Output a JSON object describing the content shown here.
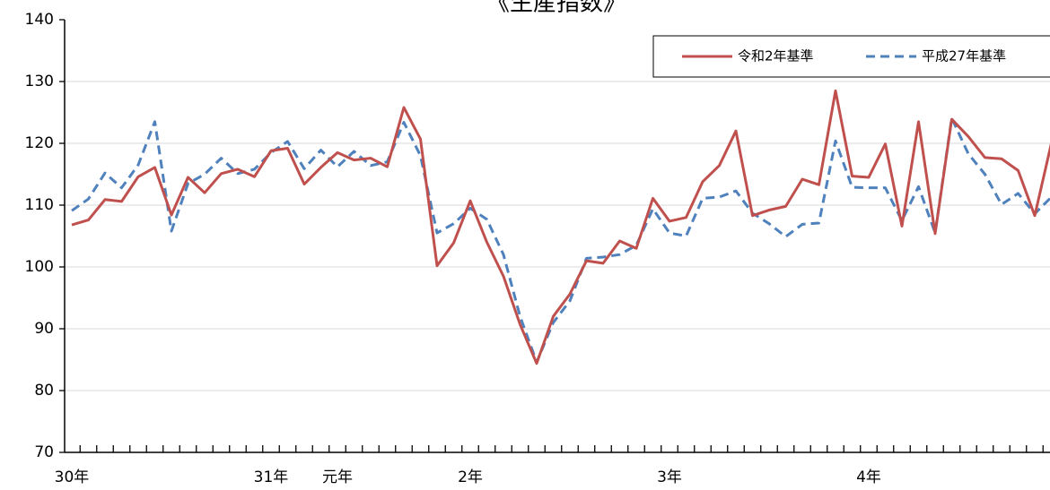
{
  "chart_data": {
    "type": "line",
    "title": "《生産指数》",
    "categories": [
      "30年",
      null,
      null,
      null,
      null,
      null,
      null,
      null,
      null,
      null,
      null,
      null,
      "31年",
      null,
      null,
      null,
      "元年",
      null,
      null,
      null,
      null,
      null,
      null,
      null,
      "2年",
      null,
      null,
      null,
      null,
      null,
      null,
      null,
      null,
      null,
      null,
      null,
      "3年",
      null,
      null,
      null,
      null,
      null,
      null,
      null,
      null,
      null,
      null,
      null,
      "4年",
      null,
      null,
      null,
      null,
      null,
      null,
      null,
      null,
      null,
      null,
      null
    ],
    "series": [
      {
        "name": "令和2年基準",
        "color": "#c0504d",
        "dashed": false,
        "values": [
          106.8,
          107.6,
          110.9,
          110.6,
          114.6,
          116.1,
          108.4,
          114.5,
          112.0,
          115.1,
          115.8,
          114.6,
          118.8,
          119.2,
          113.4,
          116.1,
          118.5,
          117.3,
          117.6,
          116.2,
          125.8,
          120.7,
          100.2,
          103.9,
          110.7,
          104.0,
          98.5,
          90.7,
          84.4,
          92.0,
          95.6,
          101.0,
          100.6,
          104.2,
          103.0,
          111.1,
          107.4,
          108.0,
          113.8,
          116.4,
          122.0,
          108.3,
          109.2,
          109.8,
          114.2,
          113.3,
          128.5,
          114.7,
          114.5,
          119.9,
          106.6,
          123.5,
          105.4,
          123.9,
          121.1,
          117.7,
          117.5,
          115.6,
          108.3,
          120.0
        ]
      },
      {
        "name": "平成27年基準",
        "color": "#4f81bd",
        "dashed": true,
        "values": [
          109.1,
          111.0,
          115.2,
          112.8,
          116.5,
          123.5,
          105.8,
          113.5,
          115.0,
          117.6,
          115.1,
          115.8,
          118.5,
          120.3,
          115.9,
          118.9,
          116.2,
          118.7,
          116.4,
          117.0,
          123.4,
          118.0,
          105.5,
          107.0,
          109.5,
          107.7,
          102.0,
          92.0,
          84.6,
          91.0,
          94.5,
          101.4,
          101.6,
          102.0,
          103.5,
          109.4,
          105.5,
          105.0,
          111.1,
          111.3,
          112.3,
          108.7,
          107.0,
          104.9,
          106.9,
          107.1,
          120.4,
          112.9,
          112.8,
          112.8,
          107.5,
          113.0,
          105.5,
          124.1,
          118.3,
          115.0,
          110.1,
          111.9,
          108.6,
          111.3
        ]
      }
    ],
    "ylim": [
      70,
      140
    ],
    "yticks": [
      70,
      80,
      90,
      100,
      110,
      120,
      130,
      140
    ],
    "grid": true,
    "legend": "upper right"
  }
}
